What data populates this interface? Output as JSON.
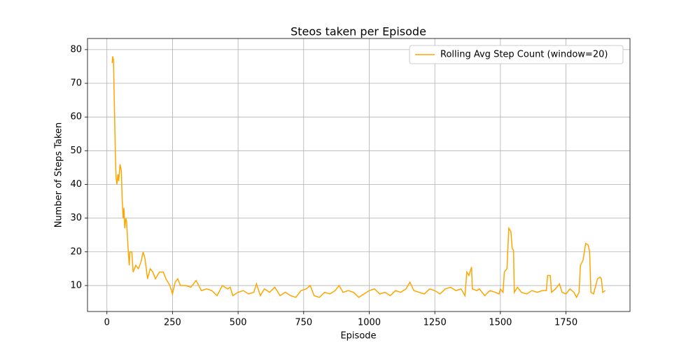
{
  "chart_data": {
    "type": "line",
    "title": "Steos taken per Episode",
    "x_label": "Episode",
    "y_label": "Number of Steps Taken",
    "xlim": [
      -74,
      1994
    ],
    "ylim": [
      2.3,
      83.3
    ],
    "xticks": [
      0,
      250,
      500,
      750,
      1000,
      1250,
      1500,
      1750
    ],
    "yticks": [
      10,
      20,
      30,
      40,
      50,
      60,
      70,
      80
    ],
    "grid": true,
    "legend": "upper right",
    "x": [
      20,
      22,
      25,
      28,
      32,
      35,
      38,
      42,
      45,
      50,
      55,
      58,
      62,
      65,
      68,
      72,
      75,
      80,
      85,
      88,
      95,
      100,
      110,
      120,
      130,
      138,
      145,
      155,
      165,
      175,
      185,
      200,
      215,
      225,
      240,
      250,
      260,
      270,
      280,
      300,
      320,
      340,
      360,
      380,
      400,
      420,
      440,
      460,
      470,
      480,
      500,
      520,
      540,
      560,
      570,
      585,
      600,
      620,
      640,
      660,
      680,
      700,
      720,
      740,
      760,
      775,
      790,
      810,
      830,
      850,
      870,
      885,
      900,
      920,
      940,
      960,
      980,
      1000,
      1020,
      1040,
      1060,
      1080,
      1100,
      1120,
      1140,
      1155,
      1170,
      1190,
      1210,
      1230,
      1250,
      1270,
      1290,
      1310,
      1330,
      1350,
      1365,
      1372,
      1380,
      1390,
      1393,
      1410,
      1420,
      1440,
      1460,
      1480,
      1495,
      1500,
      1510,
      1515,
      1525,
      1532,
      1540,
      1545,
      1550,
      1553,
      1565,
      1580,
      1600,
      1620,
      1640,
      1660,
      1675,
      1680,
      1690,
      1695,
      1710,
      1725,
      1735,
      1750,
      1765,
      1780,
      1790,
      1800,
      1805,
      1815,
      1825,
      1835,
      1840,
      1845,
      1855,
      1870,
      1880,
      1885,
      1890,
      1900
    ],
    "series": [
      {
        "name": "Rolling Avg Step Count (window=20)",
        "color": "#ffa500",
        "values": [
          76,
          78,
          77,
          65,
          50,
          42,
          40,
          43,
          41,
          46,
          44,
          36,
          30,
          33,
          27,
          30,
          29,
          22,
          16,
          20,
          20,
          14,
          16,
          15,
          17,
          20,
          18,
          12,
          15,
          14,
          12,
          14,
          14,
          12,
          10,
          7.5,
          11,
          12,
          10,
          10,
          9.5,
          11.5,
          8.5,
          9,
          8.5,
          7,
          10,
          9,
          9.5,
          7,
          8,
          8.5,
          7.5,
          8,
          10.5,
          7,
          9,
          8,
          9.5,
          7,
          8,
          7,
          6.5,
          8.5,
          9,
          10,
          7,
          6.5,
          8,
          7.5,
          8.5,
          10,
          8,
          8.5,
          8,
          6.5,
          7.5,
          8.5,
          9,
          7.5,
          8,
          7,
          8.5,
          8,
          9,
          11,
          8.5,
          8,
          7.5,
          9,
          8.5,
          7.5,
          9,
          9.5,
          8.5,
          9,
          7,
          14,
          13,
          15.5,
          9,
          8.5,
          9,
          7,
          8.5,
          8,
          7.5,
          9,
          8,
          14,
          15,
          27,
          26,
          21,
          20.5,
          8,
          9.5,
          8,
          7.5,
          8.5,
          8,
          8.5,
          8.5,
          13,
          13,
          8,
          9,
          10.5,
          8,
          7.5,
          9,
          8,
          6.5,
          8,
          16,
          17.5,
          22.5,
          22,
          20,
          8,
          7.5,
          12,
          12.5,
          12,
          8,
          8.5
        ]
      }
    ]
  }
}
